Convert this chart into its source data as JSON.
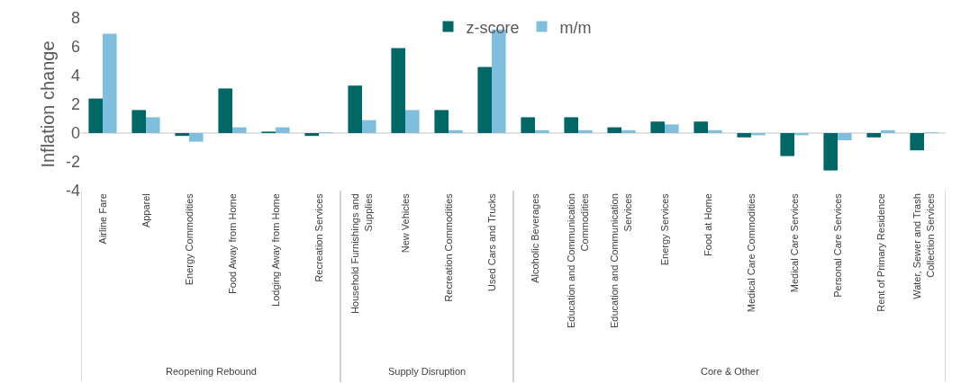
{
  "chart_data": {
    "type": "bar",
    "ylabel": "Inflation change",
    "categories": [
      "Airline Fare",
      "Apparel",
      "Energy Commodities",
      "Food Away from Home",
      "Lodging Away from Home",
      "Recreation Services",
      "Household Furnishings and Supplies",
      "New Vehicles",
      "Recreation Commodities",
      "Used Cars and Trucks",
      "Alcoholic Beverages",
      "Education and Communication Commodities",
      "Education and Communication Services",
      "Energy Services",
      "Food at Home",
      "Medical Care Commodities",
      "Medical Care Services",
      "Personal Care Services",
      "Rent of Primary Residence",
      "Water, Sewer and Trash Collection Services"
    ],
    "series": [
      {
        "name": "z-score",
        "color": "#006666",
        "values": [
          2.4,
          1.6,
          -0.2,
          3.1,
          0.1,
          -0.2,
          3.3,
          5.9,
          1.6,
          4.6,
          1.1,
          1.1,
          0.4,
          0.8,
          0.8,
          -0.3,
          -1.6,
          -2.6,
          -0.3,
          -1.2
        ]
      },
      {
        "name": "m/m",
        "color": "#7fbfdd",
        "values": [
          6.9,
          1.1,
          -0.6,
          0.4,
          0.4,
          0.05,
          0.9,
          1.6,
          0.2,
          7.2,
          0.2,
          0.2,
          0.2,
          0.6,
          0.2,
          -0.15,
          -0.15,
          -0.5,
          0.2,
          0.05
        ]
      }
    ],
    "ylim": [
      -4,
      8
    ],
    "yticks": [
      -4,
      -2,
      0,
      2,
      4,
      6,
      8
    ],
    "legend": "top",
    "ref_lines": [
      {
        "axis": "y",
        "value": 0,
        "color": "#d9d9d9"
      }
    ],
    "annotations": [
      "Reopening Rebound",
      "Supply Disruption",
      "Core & Other"
    ]
  }
}
